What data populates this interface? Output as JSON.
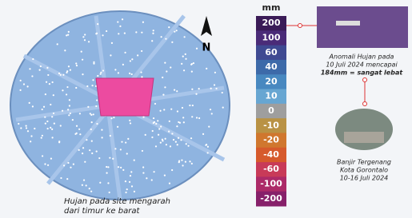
{
  "map": {
    "north_label": "N",
    "caption": [
      "Hujan pada site mengarah",
      "dari timur ke barat"
    ]
  },
  "legend": {
    "unit": "mm",
    "items": [
      {
        "label": "200",
        "color": "#3a1b57"
      },
      {
        "label": "100",
        "color": "#4a2b78"
      },
      {
        "label": "60",
        "color": "#3f4a92"
      },
      {
        "label": "40",
        "color": "#3d6aa9"
      },
      {
        "label": "20",
        "color": "#4888c0"
      },
      {
        "label": "10",
        "color": "#67a6d2"
      },
      {
        "label": "0",
        "color": "#9e9e9e"
      },
      {
        "label": "-10",
        "color": "#b99245"
      },
      {
        "label": "-20",
        "color": "#d0772e"
      },
      {
        "label": "-40",
        "color": "#d65a2c"
      },
      {
        "label": "-60",
        "color": "#c83a58"
      },
      {
        "label": "-100",
        "color": "#ac2a68"
      },
      {
        "label": "-200",
        "color": "#86206a"
      }
    ]
  },
  "anomaly_note": [
    "Anomali Hujan pada",
    "10 Juli 2024 mencapai",
    "184mm = sangat lebat"
  ],
  "photo_note": [
    "Banjir Tergenang",
    "Kota Gorontalo",
    "10-16 Juli 2024"
  ]
}
